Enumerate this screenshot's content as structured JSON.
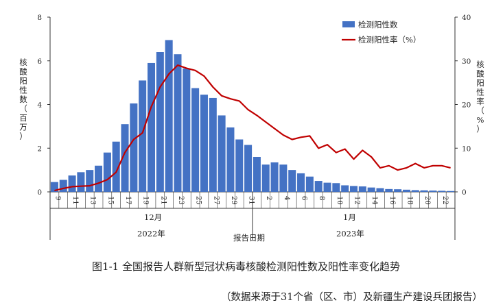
{
  "caption": "图1-1 全国报告人群新型冠状病毒核酸检测阳性数及阳性率变化趋势",
  "source": "（数据来源于31个省（区、市）及新疆生产建设兵团报告）",
  "chart_data": {
    "type": "bar+line",
    "xlabel": "报告日期",
    "y_left": {
      "label": [
        "核",
        "酸",
        "阳",
        "性",
        "数",
        "（",
        "百",
        "万",
        "）"
      ],
      "range": [
        0,
        8
      ],
      "ticks": [
        "0",
        "2",
        "4",
        "6",
        "8"
      ]
    },
    "y_right": {
      "label": [
        "核",
        "酸",
        "阳",
        "性",
        "率",
        "（",
        "%",
        "）"
      ],
      "range": [
        0,
        40
      ],
      "ticks": [
        "0",
        "10",
        "20",
        "30",
        "40"
      ]
    },
    "x_tick_labels": [
      "9",
      "11",
      "13",
      "15",
      "17",
      "19",
      "21",
      "23",
      "25",
      "27",
      "29",
      "31",
      "2",
      "4",
      "6",
      "8",
      "10",
      "12",
      "14",
      "16",
      "18",
      "20",
      "22"
    ],
    "month_labels": [
      "12月",
      "1月"
    ],
    "year_labels": [
      "2022年",
      "2023年"
    ],
    "legend": {
      "bar": "检测阳性数",
      "line": "检测阳性率（%）"
    },
    "colors": {
      "bar": "#4472C4",
      "line": "#C00000"
    },
    "dates": [
      "2022-12-09",
      "2022-12-10",
      "2022-12-11",
      "2022-12-12",
      "2022-12-13",
      "2022-12-14",
      "2022-12-15",
      "2022-12-16",
      "2022-12-17",
      "2022-12-18",
      "2022-12-19",
      "2022-12-20",
      "2022-12-21",
      "2022-12-22",
      "2022-12-23",
      "2022-12-24",
      "2022-12-25",
      "2022-12-26",
      "2022-12-27",
      "2022-12-28",
      "2022-12-29",
      "2022-12-30",
      "2022-12-31",
      "2023-01-01",
      "2023-01-02",
      "2023-01-03",
      "2023-01-04",
      "2023-01-05",
      "2023-01-06",
      "2023-01-07",
      "2023-01-08",
      "2023-01-09",
      "2023-01-10",
      "2023-01-11",
      "2023-01-12",
      "2023-01-13",
      "2023-01-14",
      "2023-01-15",
      "2023-01-16",
      "2023-01-17",
      "2023-01-18",
      "2023-01-19",
      "2023-01-20",
      "2023-01-21",
      "2023-01-22",
      "2023-01-23"
    ],
    "series": [
      {
        "name": "检测阳性数",
        "type": "bar",
        "axis": "left",
        "values": [
          0.45,
          0.55,
          0.75,
          0.9,
          1.0,
          1.2,
          1.8,
          2.3,
          3.1,
          4.05,
          5.1,
          5.9,
          6.4,
          6.95,
          6.3,
          5.65,
          4.75,
          4.45,
          4.3,
          3.5,
          2.95,
          2.4,
          2.15,
          1.6,
          1.25,
          1.35,
          1.25,
          1.0,
          0.85,
          0.7,
          0.5,
          0.42,
          0.4,
          0.3,
          0.27,
          0.25,
          0.2,
          0.17,
          0.13,
          0.12,
          0.1,
          0.08,
          0.07,
          0.06,
          0.05,
          0.04
        ]
      },
      {
        "name": "检测阳性率（%）",
        "type": "line",
        "axis": "right",
        "values": [
          0.3,
          0.8,
          1.2,
          1.3,
          1.4,
          2.0,
          2.8,
          4.5,
          9.0,
          12.0,
          13.5,
          19.5,
          24.0,
          27.0,
          29.0,
          28.3,
          27.8,
          26.5,
          24.0,
          22.0,
          21.3,
          20.8,
          18.8,
          17.5,
          16.0,
          14.5,
          13.0,
          12.0,
          12.5,
          12.8,
          10.0,
          10.8,
          9.0,
          9.8,
          7.5,
          9.5,
          8.0,
          5.5,
          6.0,
          5.0,
          5.5,
          6.5,
          5.5,
          6.0,
          6.0,
          5.5
        ]
      }
    ]
  }
}
